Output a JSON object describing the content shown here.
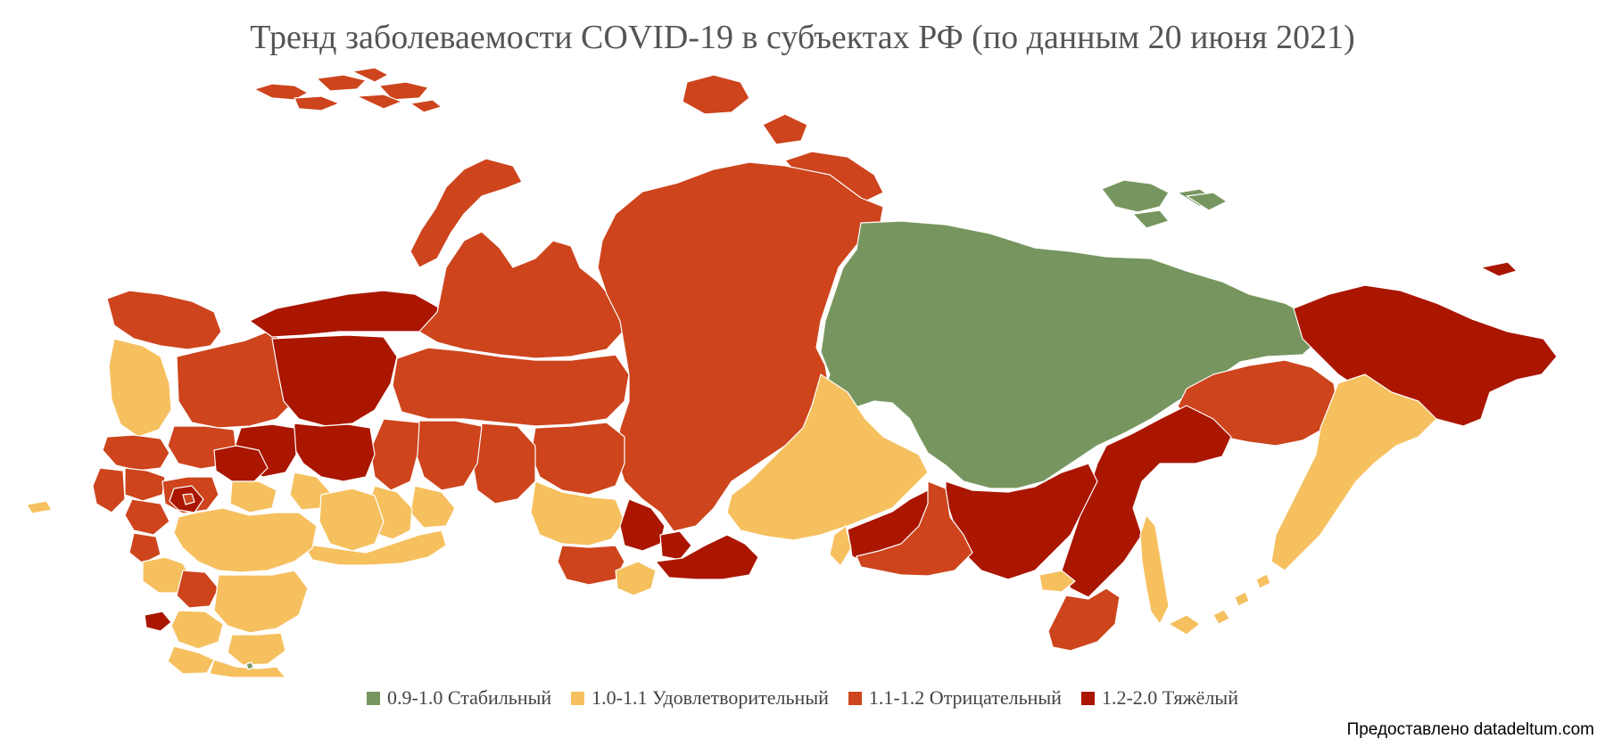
{
  "title": "Тренд заболеваемости COVID-19 в субъектах РФ (по данным 20 июня 2021)",
  "legend": {
    "items": [
      {
        "label": "0.9-1.0 Стабильный",
        "color": "#77965f"
      },
      {
        "label": "1.0-1.1 Удовлетворительный",
        "color": "#f6c05f"
      },
      {
        "label": "1.1-1.2 Отрицательный",
        "color": "#cd441d"
      },
      {
        "label": "1.2-2.0 Тяжёлый",
        "color": "#aa1600"
      }
    ]
  },
  "credit": "Предоставлено datadeltum.com",
  "colors": {
    "stable": "#77965f",
    "satisfactory": "#f6c05f",
    "negative": "#cd441d",
    "severe": "#aa1600",
    "border": "#ffffff"
  }
}
